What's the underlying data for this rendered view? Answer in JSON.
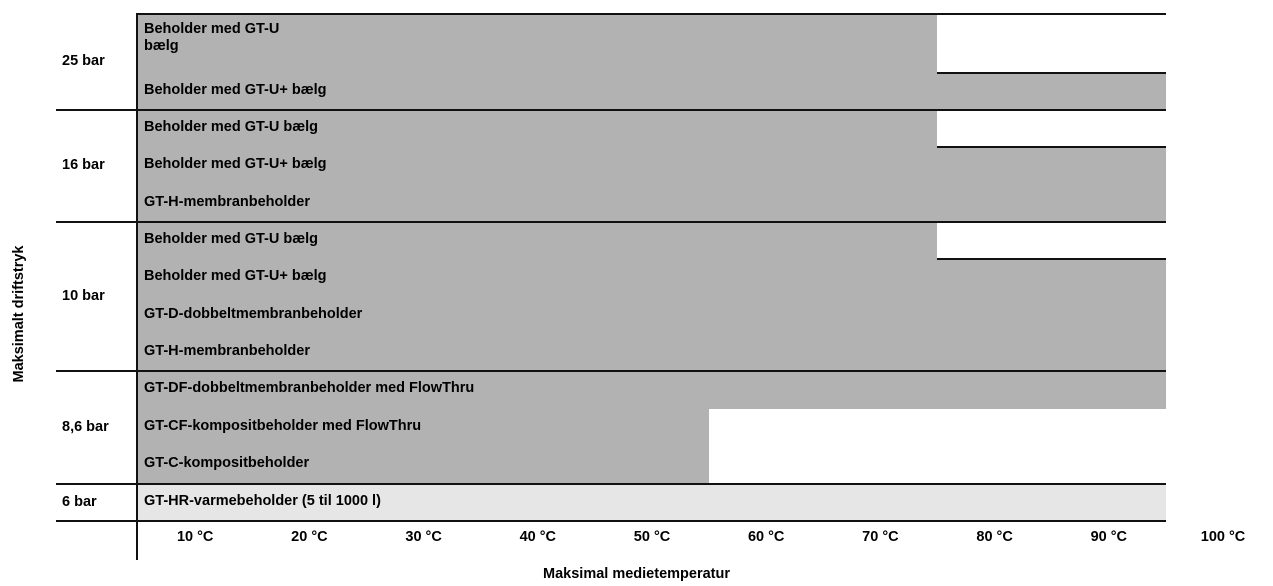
{
  "chart_data": {
    "type": "bar",
    "orientation": "horizontal",
    "xlabel": "Maksimal medietemperatur",
    "ylabel": "Maksimalt driftstryk",
    "x_ticks": [
      "10 °C",
      "20 °C",
      "30 °C",
      "40 °C",
      "50 °C",
      "60 °C",
      "70 °C",
      "80 °C",
      "90 °C",
      "100 °C"
    ],
    "xlim": [
      0,
      100
    ],
    "groups": [
      {
        "pressure": "25 bar",
        "items": [
          {
            "label": "Beholder med GT-U\nbælg",
            "max_temp": 70
          },
          {
            "label": "Beholder med GT-U+ bælg",
            "max_temp": 90
          }
        ]
      },
      {
        "pressure": "16 bar",
        "items": [
          {
            "label": "Beholder med GT-U bælg",
            "max_temp": 70
          },
          {
            "label": "Beholder med GT-U+ bælg",
            "max_temp": 90
          },
          {
            "label": "GT-H-membranbeholder",
            "max_temp": 90
          }
        ]
      },
      {
        "pressure": "10 bar",
        "items": [
          {
            "label": "Beholder med GT-U bælg",
            "max_temp": 70
          },
          {
            "label": "Beholder med GT-U+ bælg",
            "max_temp": 90
          },
          {
            "label": "GT-D-dobbeltmembranbeholder",
            "max_temp": 90
          },
          {
            "label": "GT-H-membranbeholder",
            "max_temp": 90
          }
        ]
      },
      {
        "pressure": "8,6 bar",
        "items": [
          {
            "label": "GT-DF-dobbeltmembranbeholder med FlowThru",
            "max_temp": 90
          },
          {
            "label": "GT-CF-kompositbeholder med FlowThru",
            "max_temp": 50
          },
          {
            "label": "GT-C-kompositbeholder",
            "max_temp": 50
          }
        ]
      },
      {
        "pressure": "6 bar",
        "items": [
          {
            "label": "GT-HR-varmebeholder (5 til 1000 l)",
            "max_temp": 90,
            "shade": "light"
          }
        ]
      }
    ],
    "colors": {
      "bar": "#b2b2b2",
      "bar_light": "#e6e6e6",
      "rule": "#111111"
    }
  }
}
